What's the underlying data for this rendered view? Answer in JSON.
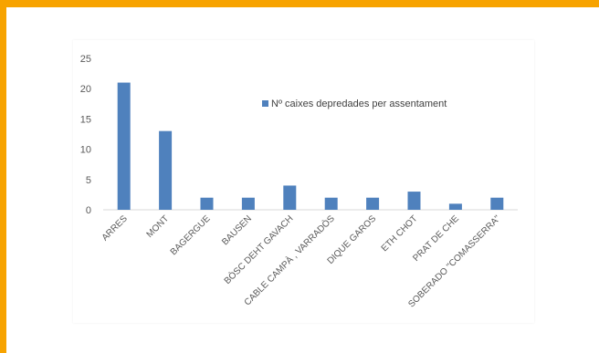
{
  "chart_data": {
    "type": "bar",
    "categories": [
      "ARRES",
      "MONT",
      "BAGERGUE",
      "BAUSEN",
      "BÒSC DEHT GAVACH",
      "CABLE CAMPÀ , VARRADÒS",
      "DIQUE GAROS",
      "ETH CHOT",
      "PRAT DE CHE",
      "SOBERADO \"COMASSERRA\""
    ],
    "series": [
      {
        "name": "Nº caixes depredades per assentament",
        "values": [
          21,
          13,
          2,
          2,
          4,
          2,
          2,
          3,
          1,
          2
        ],
        "color": "#4f81bd"
      }
    ],
    "yticks": [
      "0",
      "5",
      "10",
      "15",
      "20",
      "25"
    ],
    "ylim": [
      0,
      25
    ],
    "grid": false,
    "legend_position": "inside-top-center",
    "title": "",
    "xlabel": "",
    "ylabel": ""
  },
  "colors": {
    "frame": "#f7a300",
    "axis": "#d9d9d9",
    "text": "#595959"
  }
}
